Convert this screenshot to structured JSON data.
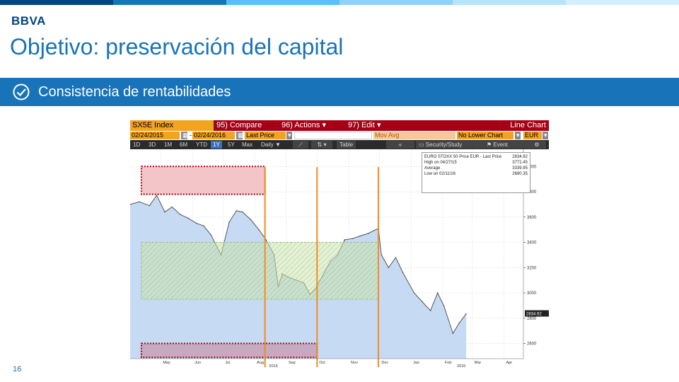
{
  "slide": {
    "logo": "BBVA",
    "title": "Objetivo: preservación del capital",
    "subtitle": "Consistencia de rentabilidades",
    "page_number": "16"
  },
  "terminal": {
    "ticker": "SX5E Index",
    "menu": [
      "95) Compare",
      "96) Actions",
      "97) Edit"
    ],
    "chart_type": "Line Chart",
    "start_date": "02/24/2015",
    "end_date": "02/24/2016",
    "dash": "-",
    "price_field": "Last Price",
    "study": "Mov Avg",
    "lower_chart": "No Lower Chart",
    "currency": "EUR",
    "periods": [
      "1D",
      "3D",
      "1M",
      "6M",
      "YTD",
      "1Y",
      "5Y",
      "Max"
    ],
    "active_period": "1Y",
    "frequency": "Daily",
    "table_label": "Table",
    "security_study": "Security/Study",
    "event_label": "Event"
  },
  "chart_data": {
    "type": "area",
    "x": [
      "2015-04-01",
      "2015-04-10",
      "2015-04-20",
      "2015-04-27",
      "2015-05-05",
      "2015-05-12",
      "2015-05-20",
      "2015-05-28",
      "2015-06-05",
      "2015-06-12",
      "2015-06-19",
      "2015-06-29",
      "2015-07-07",
      "2015-07-14",
      "2015-07-20",
      "2015-07-28",
      "2015-08-05",
      "2015-08-12",
      "2015-08-20",
      "2015-08-24",
      "2015-08-28",
      "2015-09-04",
      "2015-09-11",
      "2015-09-18",
      "2015-09-24",
      "2015-09-29",
      "2015-10-06",
      "2015-10-14",
      "2015-10-21",
      "2015-10-28",
      "2015-11-05",
      "2015-11-12",
      "2015-11-20",
      "2015-11-30",
      "2015-12-03",
      "2015-12-10",
      "2015-12-17",
      "2015-12-24",
      "2016-01-04",
      "2016-01-12",
      "2016-01-20",
      "2016-01-27",
      "2016-02-02",
      "2016-02-11",
      "2016-02-17",
      "2016-02-24"
    ],
    "y": [
      3700,
      3720,
      3690,
      3771,
      3640,
      3680,
      3620,
      3590,
      3550,
      3530,
      3460,
      3300,
      3560,
      3650,
      3640,
      3580,
      3500,
      3420,
      3300,
      3050,
      3150,
      3120,
      3100,
      3080,
      2990,
      3030,
      3130,
      3250,
      3300,
      3420,
      3430,
      3450,
      3470,
      3510,
      3300,
      3200,
      3280,
      3160,
      3000,
      2930,
      2860,
      3000,
      2900,
      2680,
      2760,
      2834.92
    ],
    "xlim": [
      "2015-04-01",
      "2016-04-20"
    ],
    "ylim": [
      2480,
      4080
    ],
    "y_ticks": [
      2600,
      2800,
      3000,
      3200,
      3400,
      3600,
      3800,
      4000
    ],
    "x_tick_labels": [
      "May",
      "Jun",
      "Jul",
      "Aug",
      "Sep",
      "Oct",
      "Nov",
      "Dec",
      "Jan",
      "Feb",
      "Mar",
      "Apr"
    ],
    "x_tick_dates": [
      "2015-05-01",
      "2015-06-01",
      "2015-07-01",
      "2015-08-01",
      "2015-09-01",
      "2015-10-01",
      "2015-11-01",
      "2015-12-01",
      "2016-01-01",
      "2016-02-01",
      "2016-03-01",
      "2016-04-01"
    ],
    "year_labels": [
      {
        "label": "2015",
        "date": "2015-08-15"
      },
      {
        "label": "2016",
        "date": "2016-02-15"
      }
    ],
    "last_value_label": "2834.92",
    "legend": {
      "series": "EURO STOXX 50 Price EUR - Last Price",
      "last": "2834.92",
      "high_label": "High on 04/27/15",
      "high": "3771.45",
      "avg_label": "Average",
      "avg": "3339.95",
      "low_label": "Low on 02/11/16",
      "low": "2680.35"
    },
    "vertical_markers": [
      "2015-08-11",
      "2015-10-01",
      "2015-11-30"
    ],
    "grid": true,
    "colors": {
      "fill": "#c6daf3",
      "line": "#555555",
      "marker": "#f28c1e",
      "green_box": "#cde6b0",
      "red_box": "#f4c5c8",
      "dark_red": "#a5000f"
    }
  },
  "colors": {
    "accent": "#1973b8",
    "brand": "#004481"
  }
}
